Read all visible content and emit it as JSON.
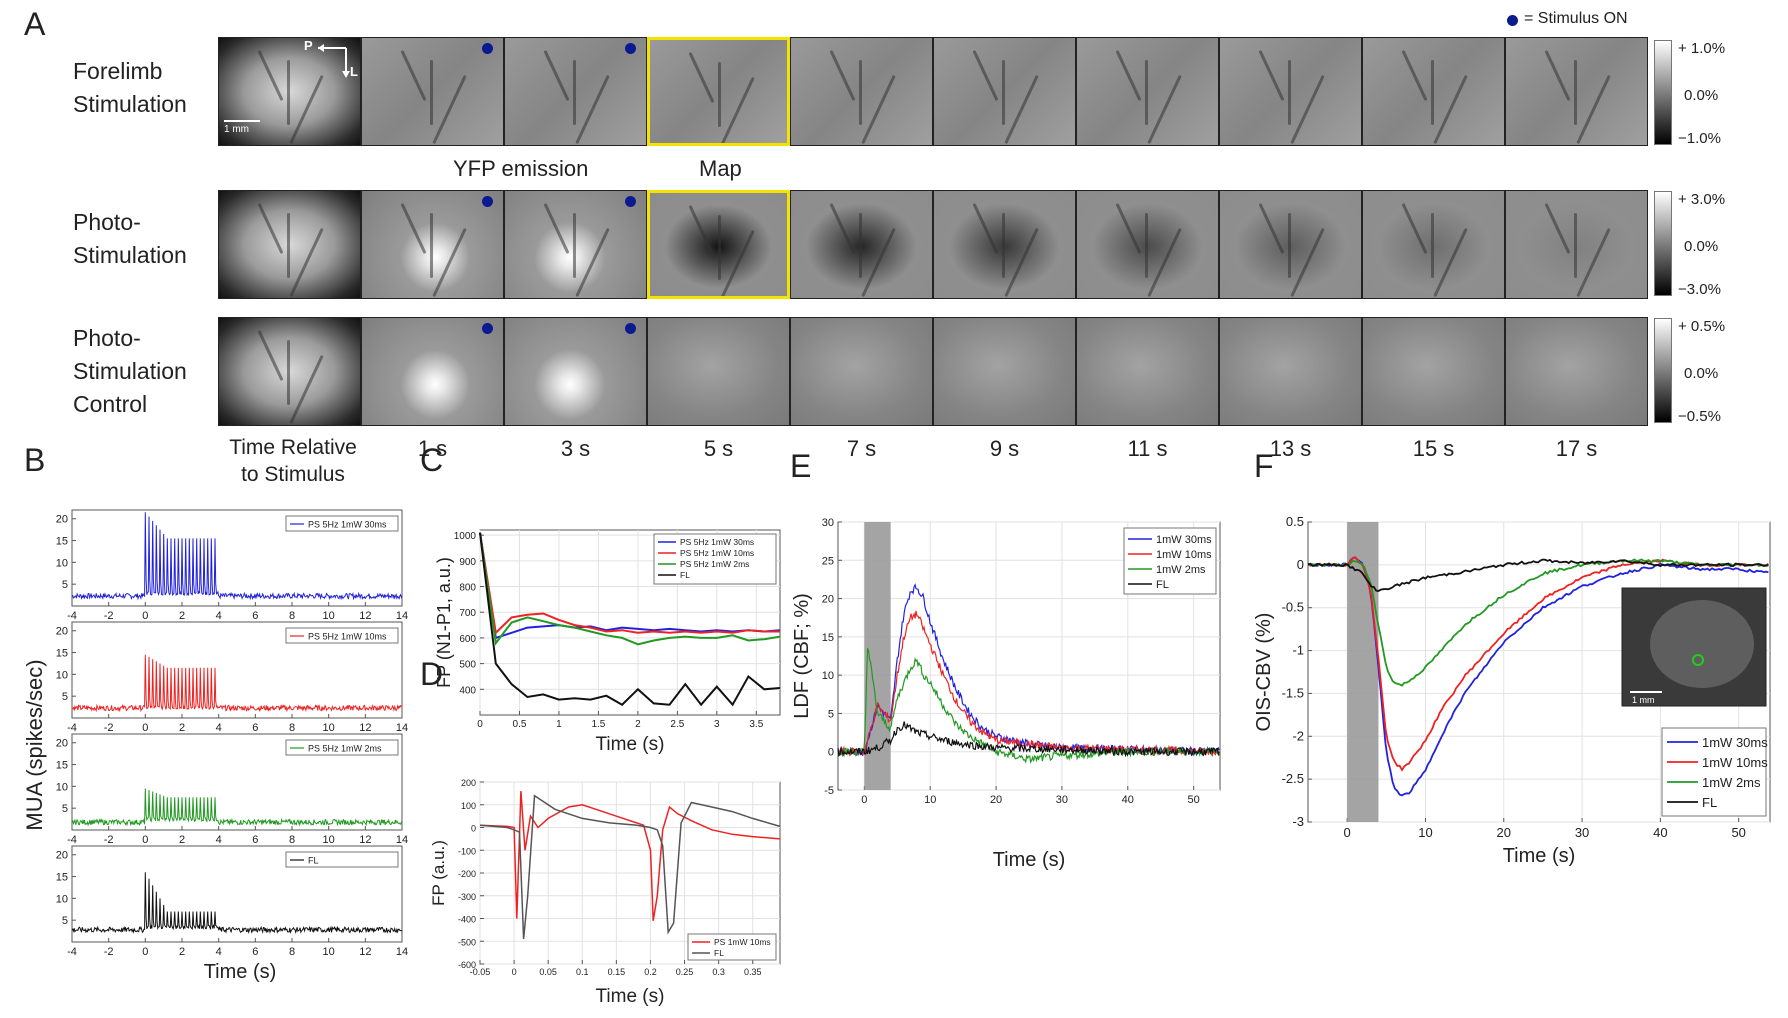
{
  "panel_labels": {
    "A": "A",
    "B": "B",
    "C": "C",
    "D": "D",
    "E": "E",
    "F": "F"
  },
  "legend_top": {
    "text": "= Stimulus ON",
    "dot_color": "#0b1a8f"
  },
  "rows": [
    {
      "label_lines": [
        "Forelimb",
        "Stimulation"
      ],
      "cbar": [
        "+ 1.0%",
        "0.0%",
        "−1.0%"
      ]
    },
    {
      "label_lines": [
        "Photo-",
        "Stimulation"
      ],
      "cbar": [
        "+ 3.0%",
        "0.0%",
        "−3.0%"
      ]
    },
    {
      "label_lines": [
        "Photo-",
        "Stimulation",
        "Control"
      ],
      "cbar": [
        "+ 0.5%",
        "0.0%",
        "−0.5%"
      ]
    }
  ],
  "orientation": {
    "P": "P",
    "L": "L"
  },
  "scale_bar": "1 mm",
  "captions": {
    "yfp": "YFP emission",
    "map": "Map"
  },
  "time_axis_label": [
    "Time Relative",
    "to Stimulus"
  ],
  "time_labels": [
    "1 s",
    "3 s",
    "5 s",
    "7 s",
    "9 s",
    "11 s",
    "13 s",
    "15 s",
    "17 s"
  ],
  "colors": {
    "blue": "#2222dd",
    "red": "#ee2222",
    "green": "#229922",
    "black": "#111111",
    "highlight": "#f4e300",
    "stim_shade": "#9a9a9a"
  },
  "chart_data": [
    {
      "id": "B",
      "type": "line",
      "ylabel": "MUA (spikes/sec)",
      "xlabel": "Time (s)",
      "xlim": [
        -4,
        14
      ],
      "ylim": [
        0,
        22
      ],
      "xticks": [
        -4,
        -2,
        0,
        2,
        4,
        6,
        8,
        10,
        12,
        14
      ],
      "yticks": [
        5,
        10,
        15,
        20
      ],
      "subplots": [
        {
          "legend": "PS 5Hz 1mW 30ms",
          "color": "#2222dd",
          "baseline": 2.3,
          "peak": 21.5,
          "train_peak": 15.5,
          "train_trough": 2.5
        },
        {
          "legend": "PS 5Hz 1mW 10ms",
          "color": "#ee2222",
          "baseline": 2.3,
          "peak": 14.5,
          "train_peak": 11.5,
          "train_trough": 2.0
        },
        {
          "legend": "PS 5Hz 1mW 2ms",
          "color": "#229922",
          "baseline": 1.8,
          "peak": 9.5,
          "train_peak": 7.5,
          "train_trough": 2.0
        },
        {
          "legend": "FL",
          "color": "#111111",
          "baseline": 2.8,
          "peak": 16,
          "train_peak": 7,
          "train_trough": 3.0
        }
      ]
    },
    {
      "id": "C",
      "type": "line",
      "ylabel": "FP (N1-P1, a.u.)",
      "xlabel": "Time (s)",
      "xlim": [
        0,
        3.8
      ],
      "ylim": [
        300,
        1020
      ],
      "xticks": [
        0,
        0.5,
        1,
        1.5,
        2,
        2.5,
        3,
        3.5
      ],
      "yticks": [
        400,
        500,
        600,
        700,
        800,
        900,
        1000
      ],
      "series": [
        {
          "name": "PS 5Hz 1mW 30ms",
          "color": "#2222dd",
          "x": [
            0,
            0.2,
            0.4,
            0.6,
            0.8,
            1.0,
            1.2,
            1.4,
            1.6,
            1.8,
            2.0,
            2.2,
            2.4,
            2.6,
            2.8,
            3.0,
            3.2,
            3.4,
            3.6,
            3.8
          ],
          "y": [
            1010,
            600,
            620,
            640,
            645,
            650,
            640,
            645,
            630,
            640,
            635,
            630,
            635,
            630,
            625,
            630,
            625,
            630,
            625,
            630
          ]
        },
        {
          "name": "PS 5Hz 1mW 10ms",
          "color": "#ee2222",
          "x": [
            0,
            0.2,
            0.4,
            0.6,
            0.8,
            1.0,
            1.2,
            1.4,
            1.6,
            1.8,
            2.0,
            2.2,
            2.4,
            2.6,
            2.8,
            3.0,
            3.2,
            3.4,
            3.6,
            3.8
          ],
          "y": [
            1010,
            620,
            680,
            690,
            695,
            670,
            650,
            640,
            625,
            630,
            620,
            625,
            620,
            625,
            620,
            625,
            620,
            630,
            625,
            625
          ]
        },
        {
          "name": "PS 5Hz 1mW 2ms",
          "color": "#229922",
          "x": [
            0,
            0.2,
            0.4,
            0.6,
            0.8,
            1.0,
            1.2,
            1.4,
            1.6,
            1.8,
            2.0,
            2.2,
            2.4,
            2.6,
            2.8,
            3.0,
            3.2,
            3.4,
            3.6,
            3.8
          ],
          "y": [
            1010,
            580,
            660,
            680,
            665,
            650,
            640,
            625,
            610,
            600,
            575,
            590,
            600,
            605,
            600,
            600,
            610,
            590,
            595,
            605
          ]
        },
        {
          "name": "FL",
          "color": "#111111",
          "x": [
            0,
            0.2,
            0.4,
            0.6,
            0.8,
            1.0,
            1.2,
            1.4,
            1.6,
            1.8,
            2.0,
            2.2,
            2.4,
            2.6,
            2.8,
            3.0,
            3.2,
            3.4,
            3.6,
            3.8
          ],
          "y": [
            1010,
            500,
            420,
            370,
            380,
            360,
            365,
            360,
            375,
            340,
            400,
            345,
            340,
            420,
            340,
            410,
            340,
            450,
            400,
            405
          ]
        }
      ]
    },
    {
      "id": "D",
      "type": "line",
      "ylabel": "FP (a.u.)",
      "xlabel": "Time (s)",
      "xlim": [
        -0.05,
        0.39
      ],
      "ylim": [
        -600,
        200
      ],
      "xticks": [
        -0.05,
        0,
        0.05,
        0.1,
        0.15,
        0.2,
        0.25,
        0.3,
        0.35
      ],
      "yticks": [
        -600,
        -500,
        -400,
        -300,
        -200,
        -100,
        0,
        100,
        200
      ],
      "series": [
        {
          "name": "PS 1mW 10ms",
          "color": "#ee2222",
          "x": [
            -0.05,
            -0.01,
            0,
            0.004,
            0.01,
            0.016,
            0.024,
            0.035,
            0.05,
            0.08,
            0.1,
            0.13,
            0.16,
            0.19,
            0.2,
            0.204,
            0.21,
            0.218,
            0.228,
            0.24,
            0.26,
            0.29,
            0.32,
            0.35,
            0.39
          ],
          "y": [
            10,
            5,
            0,
            -400,
            160,
            -100,
            50,
            0,
            40,
            90,
            100,
            70,
            40,
            10,
            -100,
            -410,
            -300,
            -10,
            90,
            60,
            30,
            -10,
            -30,
            -40,
            -50
          ]
        },
        {
          "name": "FL",
          "color": "#555555",
          "x": [
            -0.05,
            -0.01,
            0.0,
            0.008,
            0.014,
            0.02,
            0.03,
            0.04,
            0.06,
            0.1,
            0.14,
            0.18,
            0.2,
            0.21,
            0.218,
            0.226,
            0.234,
            0.245,
            0.26,
            0.29,
            0.32,
            0.35,
            0.39
          ],
          "y": [
            10,
            0,
            -10,
            -20,
            -490,
            -300,
            140,
            120,
            80,
            40,
            20,
            10,
            0,
            -10,
            -80,
            -460,
            -420,
            20,
            110,
            90,
            70,
            40,
            5
          ]
        }
      ]
    },
    {
      "id": "E",
      "type": "line",
      "ylabel": "LDF (CBF; %)",
      "xlabel": "Time (s)",
      "xlim": [
        -4,
        54
      ],
      "ylim": [
        -5,
        30
      ],
      "xticks": [
        0,
        10,
        20,
        30,
        40,
        50
      ],
      "yticks": [
        -5,
        0,
        5,
        10,
        15,
        20,
        25,
        30
      ],
      "stim_window": [
        0,
        4
      ],
      "series": [
        {
          "name": "1mW 30ms",
          "color": "#2222dd",
          "x": [
            -4,
            0,
            2,
            4,
            5,
            6,
            7,
            8,
            9,
            10,
            12,
            14,
            16,
            18,
            20,
            25,
            30,
            40,
            54
          ],
          "y": [
            0,
            0,
            6,
            4,
            12,
            18,
            21,
            21.5,
            20,
            17,
            12,
            8,
            5,
            3,
            2,
            1,
            0.5,
            0.3,
            0
          ]
        },
        {
          "name": "1mW 10ms",
          "color": "#ee2222",
          "x": [
            -4,
            0,
            2,
            4,
            5,
            6,
            7,
            8,
            9,
            10,
            12,
            14,
            16,
            18,
            20,
            25,
            30,
            40,
            54
          ],
          "y": [
            0,
            0,
            6,
            4,
            10,
            15,
            17.5,
            18,
            16,
            14,
            10,
            6.5,
            4,
            2.5,
            1.5,
            1,
            0.5,
            0.3,
            0
          ]
        },
        {
          "name": "1mW 2ms",
          "color": "#229922",
          "x": [
            -4,
            0,
            0.5,
            2,
            4,
            5,
            6,
            7,
            8,
            9,
            10,
            12,
            14,
            16,
            18,
            20,
            25,
            30,
            40,
            54
          ],
          "y": [
            0,
            0,
            14,
            5,
            3,
            7,
            9,
            11,
            12,
            10,
            9,
            6,
            3.5,
            2,
            1,
            0,
            -1,
            -0.5,
            0,
            0
          ]
        },
        {
          "name": "FL",
          "color": "#111111",
          "x": [
            -4,
            0,
            2,
            4,
            5,
            6,
            7,
            8,
            10,
            12,
            15,
            20,
            30,
            40,
            54
          ],
          "y": [
            0,
            0,
            0.5,
            1.5,
            3,
            3.5,
            3,
            2.5,
            2,
            1.5,
            1,
            0.5,
            0.3,
            0,
            0
          ]
        }
      ]
    },
    {
      "id": "F",
      "type": "line",
      "ylabel": "OIS-CBV (%)",
      "xlabel": "Time (s)",
      "xlim": [
        -5,
        54
      ],
      "ylim": [
        -3,
        0.5
      ],
      "xticks": [
        0,
        10,
        20,
        30,
        40,
        50
      ],
      "yticks": [
        -3,
        -2.5,
        -2,
        -1.5,
        -1,
        -0.5,
        0,
        0.5
      ],
      "stim_window": [
        0,
        4
      ],
      "inset_scale": "1 mm",
      "series": [
        {
          "name": "1mW 30ms",
          "color": "#2222dd",
          "x": [
            -5,
            0,
            1,
            2,
            3,
            4,
            5,
            6,
            7,
            8,
            10,
            12,
            15,
            20,
            25,
            30,
            35,
            40,
            45,
            50,
            54
          ],
          "y": [
            0,
            0,
            0.1,
            0,
            -0.3,
            -1.2,
            -2.2,
            -2.6,
            -2.7,
            -2.65,
            -2.4,
            -2.0,
            -1.5,
            -0.9,
            -0.5,
            -0.25,
            -0.1,
            0,
            -0.05,
            -0.05,
            -0.1
          ]
        },
        {
          "name": "1mW 10ms",
          "color": "#ee2222",
          "x": [
            -5,
            0,
            1,
            2,
            3,
            4,
            5,
            6,
            7,
            8,
            10,
            12,
            15,
            20,
            25,
            30,
            35,
            40,
            45,
            50,
            54
          ],
          "y": [
            0,
            0,
            0.1,
            0,
            -0.3,
            -1.1,
            -2.0,
            -2.3,
            -2.38,
            -2.3,
            -2.05,
            -1.7,
            -1.3,
            -0.8,
            -0.4,
            -0.15,
            0,
            0.05,
            0,
            0,
            0
          ]
        },
        {
          "name": "1mW 2ms",
          "color": "#229922",
          "x": [
            -5,
            0,
            1,
            2,
            3,
            4,
            5,
            6,
            7,
            8,
            10,
            12,
            15,
            20,
            25,
            30,
            35,
            40,
            45,
            50,
            54
          ],
          "y": [
            0,
            0,
            0.05,
            0,
            -0.2,
            -0.7,
            -1.2,
            -1.38,
            -1.4,
            -1.35,
            -1.2,
            -1.0,
            -0.7,
            -0.35,
            -0.1,
            0,
            0.05,
            0.05,
            0,
            0,
            0
          ]
        },
        {
          "name": "FL",
          "color": "#111111",
          "x": [
            -5,
            0,
            2,
            3,
            4,
            5,
            6,
            8,
            10,
            15,
            20,
            25,
            30,
            35,
            40,
            45,
            50,
            54
          ],
          "y": [
            0,
            0,
            -0.1,
            -0.25,
            -0.3,
            -0.28,
            -0.25,
            -0.2,
            -0.15,
            -0.08,
            0,
            0.05,
            0.02,
            0.05,
            0,
            0,
            0,
            0
          ]
        }
      ]
    }
  ]
}
